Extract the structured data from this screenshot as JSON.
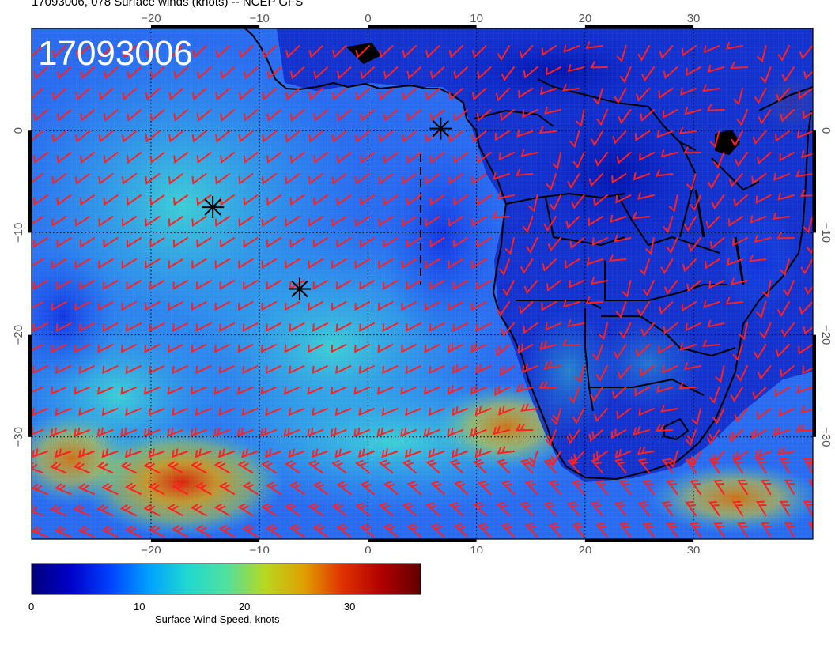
{
  "header": {
    "title": "17093006, 078 Surface winds (knots) -- NCEP GFS",
    "stamp": "17093006"
  },
  "map": {
    "lon_range": [
      -31,
      41
    ],
    "lat_range": [
      -40,
      10
    ],
    "x_ticks": [
      "−20",
      "−10",
      "0",
      "10",
      "20",
      "30"
    ],
    "y_ticks": [
      "0",
      "−10",
      "−20",
      "−30"
    ],
    "x_tick_values": [
      -20,
      -10,
      0,
      10,
      20,
      30
    ],
    "y_tick_values": [
      0,
      -10,
      -20,
      -30
    ],
    "barb_color": "#ff2020",
    "coast_color": "#000000",
    "storm_markers": [
      {
        "name": "storm-marker-1",
        "lon": -14.3,
        "lat": -7.5
      },
      {
        "name": "storm-marker-2",
        "lon": -6.3,
        "lat": -15.5
      },
      {
        "name": "storm-marker-3",
        "lon": 6.7,
        "lat": 0.2
      }
    ]
  },
  "colorbar": {
    "title": "Surface Wind Speed, knots",
    "labels": [
      "0",
      "10",
      "20",
      "30"
    ],
    "label_values": [
      0,
      10,
      20,
      30
    ],
    "max": 37,
    "colors": [
      "#00007a",
      "#0000c8",
      "#0040ff",
      "#00a0ff",
      "#20d8d0",
      "#50e0a0",
      "#b8d820",
      "#e0a000",
      "#e03000",
      "#b00000",
      "#600000"
    ]
  }
}
